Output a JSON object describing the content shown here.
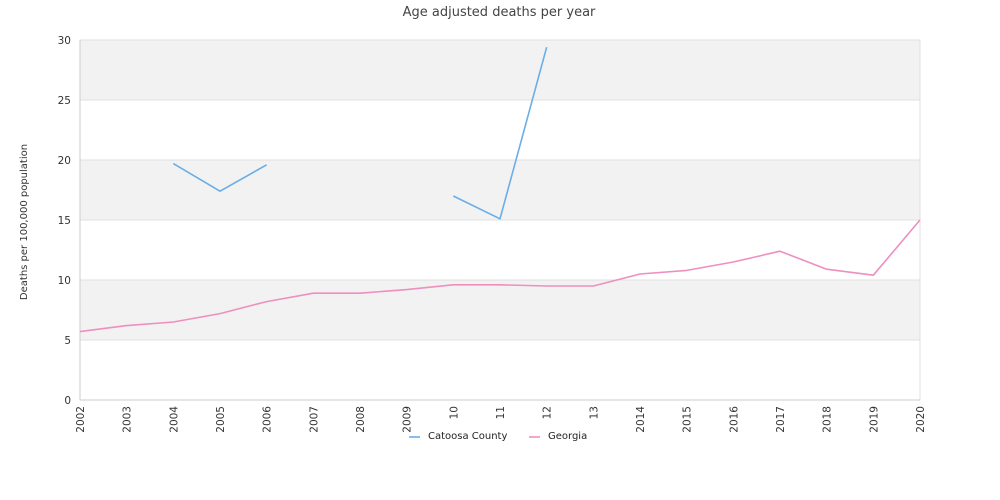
{
  "chart_data": {
    "type": "line",
    "title": "Age adjusted deaths per year",
    "ylabel": "Deaths per 100,000 population",
    "xlabel": "",
    "x": [
      "2002",
      "2003",
      "2004",
      "2005",
      "2006",
      "2007",
      "2008",
      "2009",
      "10",
      "11",
      "12",
      "13",
      "2014",
      "2015",
      "2016",
      "2017",
      "2018",
      "2019",
      "2020"
    ],
    "ylim": [
      0,
      30
    ],
    "yticks": [
      0,
      5,
      10,
      15,
      20,
      25,
      30
    ],
    "grid": true,
    "legend": "bottom-center",
    "series": [
      {
        "name": "Catoosa County",
        "color": "#6aaee8",
        "values": [
          null,
          null,
          19.7,
          17.4,
          19.6,
          null,
          null,
          null,
          17.0,
          15.1,
          29.4,
          null,
          null,
          null,
          null,
          null,
          null,
          null,
          null
        ]
      },
      {
        "name": "Georgia",
        "color": "#ee8fc0",
        "values": [
          5.7,
          6.2,
          6.5,
          7.2,
          8.2,
          8.9,
          8.9,
          9.2,
          9.6,
          9.6,
          9.5,
          9.5,
          10.5,
          10.8,
          11.5,
          12.4,
          10.9,
          10.4,
          15.0
        ]
      }
    ]
  },
  "colors": {
    "band": "#f2f2f2",
    "gridline": "#e0e0e0",
    "axis": "#cccccc"
  }
}
